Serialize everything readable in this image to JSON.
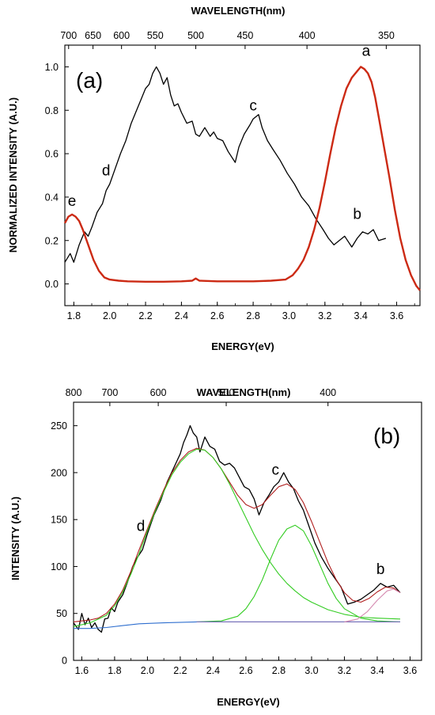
{
  "chart_data": [
    {
      "panel": "(a)",
      "type": "line",
      "xlabel": "ENERGY(eV)",
      "ylabel": "NORMALIZED INTENSITY (A.U.)",
      "top_axis_label": "WAVELENGTH(nm)",
      "xlim": [
        1.75,
        3.73
      ],
      "ylim": [
        -0.1,
        1.1
      ],
      "x_ticks": [
        "1.8",
        "2.0",
        "2.2",
        "2.4",
        "2.6",
        "2.8",
        "3.0",
        "3.2",
        "3.4",
        "3.6"
      ],
      "y_ticks": [
        "0.0",
        "0.2",
        "0.4",
        "0.6",
        "0.8",
        "1.0"
      ],
      "top_ticks": [
        "700",
        "650",
        "600",
        "550",
        "500",
        "450",
        "400",
        "350"
      ],
      "top_tick_energies": [
        1.771,
        1.907,
        2.066,
        2.254,
        2.48,
        2.755,
        3.1,
        3.542
      ],
      "grid": false,
      "series": [
        {
          "label": "black spectrum",
          "color": "#000000",
          "x": [
            1.75,
            1.78,
            1.8,
            1.83,
            1.86,
            1.88,
            1.9,
            1.93,
            1.96,
            1.98,
            2.0,
            2.03,
            2.06,
            2.09,
            2.12,
            2.15,
            2.18,
            2.2,
            2.22,
            2.24,
            2.26,
            2.28,
            2.3,
            2.32,
            2.34,
            2.36,
            2.38,
            2.4,
            2.43,
            2.46,
            2.48,
            2.5,
            2.53,
            2.56,
            2.58,
            2.6,
            2.63,
            2.66,
            2.7,
            2.72,
            2.75,
            2.78,
            2.8,
            2.83,
            2.85,
            2.88,
            2.91,
            2.95,
            2.99,
            3.03,
            3.07,
            3.11,
            3.15,
            3.19,
            3.22,
            3.25,
            3.28,
            3.31,
            3.35,
            3.38,
            3.41,
            3.44,
            3.47,
            3.5,
            3.54
          ],
          "y": [
            0.1,
            0.14,
            0.1,
            0.18,
            0.24,
            0.22,
            0.26,
            0.33,
            0.37,
            0.43,
            0.46,
            0.53,
            0.6,
            0.66,
            0.74,
            0.8,
            0.86,
            0.9,
            0.92,
            0.97,
            1.0,
            0.97,
            0.92,
            0.95,
            0.87,
            0.82,
            0.83,
            0.79,
            0.74,
            0.75,
            0.69,
            0.68,
            0.72,
            0.68,
            0.7,
            0.67,
            0.66,
            0.61,
            0.56,
            0.63,
            0.69,
            0.73,
            0.76,
            0.78,
            0.72,
            0.66,
            0.62,
            0.57,
            0.51,
            0.46,
            0.4,
            0.36,
            0.3,
            0.25,
            0.21,
            0.18,
            0.2,
            0.22,
            0.17,
            0.21,
            0.24,
            0.23,
            0.25,
            0.2,
            0.21
          ]
        },
        {
          "label": "red spectrum",
          "color": "#cc2a14",
          "x": [
            1.75,
            1.77,
            1.79,
            1.81,
            1.83,
            1.85,
            1.88,
            1.91,
            1.94,
            1.97,
            2.0,
            2.05,
            2.1,
            2.2,
            2.3,
            2.4,
            2.46,
            2.48,
            2.5,
            2.6,
            2.7,
            2.8,
            2.9,
            2.98,
            3.02,
            3.05,
            3.08,
            3.11,
            3.14,
            3.17,
            3.2,
            3.23,
            3.26,
            3.29,
            3.32,
            3.35,
            3.38,
            3.4,
            3.42,
            3.44,
            3.46,
            3.48,
            3.5,
            3.53,
            3.56,
            3.59,
            3.62,
            3.65,
            3.68,
            3.71,
            3.73
          ],
          "y": [
            0.28,
            0.31,
            0.32,
            0.31,
            0.29,
            0.25,
            0.18,
            0.11,
            0.06,
            0.03,
            0.02,
            0.015,
            0.012,
            0.01,
            0.01,
            0.012,
            0.015,
            0.025,
            0.015,
            0.012,
            0.012,
            0.012,
            0.015,
            0.02,
            0.04,
            0.07,
            0.11,
            0.17,
            0.25,
            0.35,
            0.47,
            0.6,
            0.72,
            0.82,
            0.9,
            0.95,
            0.98,
            1.0,
            0.99,
            0.97,
            0.93,
            0.86,
            0.77,
            0.63,
            0.49,
            0.34,
            0.21,
            0.11,
            0.04,
            -0.01,
            -0.03
          ]
        }
      ],
      "annotations": [
        {
          "text": "a",
          "x": 3.43,
          "y": 1.05
        },
        {
          "text": "b",
          "x": 3.38,
          "y": 0.3
        },
        {
          "text": "c",
          "x": 2.8,
          "y": 0.8
        },
        {
          "text": "d",
          "x": 1.98,
          "y": 0.5
        },
        {
          "text": "e",
          "x": 1.79,
          "y": 0.36
        }
      ]
    },
    {
      "panel": "(b)",
      "type": "line",
      "xlabel": "ENERGY(eV)",
      "ylabel": "INTENSITY (A.U.)",
      "top_axis_label": "WAVELENGTH(nm)",
      "xlim": [
        1.55,
        3.67
      ],
      "ylim": [
        0,
        275
      ],
      "x_ticks": [
        "1.6",
        "1.8",
        "2.0",
        "2.2",
        "2.4",
        "2.6",
        "2.8",
        "3.0",
        "3.2",
        "3.4",
        "3.6"
      ],
      "y_ticks": [
        "0",
        "50",
        "100",
        "150",
        "200",
        "250"
      ],
      "top_ticks": [
        "800",
        "700",
        "600",
        "500",
        "400"
      ],
      "top_tick_energies": [
        1.55,
        1.771,
        2.066,
        2.48,
        3.1
      ],
      "grid": false,
      "series": [
        {
          "label": "black data",
          "color": "#000000",
          "x": [
            1.55,
            1.58,
            1.6,
            1.62,
            1.64,
            1.66,
            1.68,
            1.7,
            1.72,
            1.74,
            1.76,
            1.78,
            1.8,
            1.82,
            1.85,
            1.88,
            1.91,
            1.94,
            1.97,
            2.0,
            2.04,
            2.08,
            2.12,
            2.16,
            2.2,
            2.22,
            2.24,
            2.26,
            2.28,
            2.3,
            2.32,
            2.35,
            2.38,
            2.41,
            2.44,
            2.47,
            2.5,
            2.53,
            2.56,
            2.59,
            2.62,
            2.65,
            2.68,
            2.71,
            2.74,
            2.77,
            2.8,
            2.83,
            2.86,
            2.89,
            2.92,
            2.95,
            2.98,
            3.02,
            3.06,
            3.1,
            3.14,
            3.18,
            3.22,
            3.26,
            3.3,
            3.34,
            3.38,
            3.42,
            3.46,
            3.5,
            3.54
          ],
          "y": [
            40,
            33,
            50,
            38,
            45,
            35,
            40,
            33,
            30,
            44,
            45,
            56,
            52,
            62,
            70,
            84,
            100,
            110,
            118,
            135,
            155,
            170,
            190,
            205,
            220,
            232,
            240,
            250,
            242,
            238,
            222,
            238,
            228,
            225,
            212,
            208,
            210,
            205,
            195,
            185,
            182,
            172,
            155,
            168,
            176,
            185,
            190,
            200,
            190,
            183,
            170,
            160,
            145,
            125,
            110,
            98,
            88,
            78,
            60,
            62,
            65,
            70,
            75,
            82,
            78,
            80,
            72
          ]
        },
        {
          "label": "red fit",
          "color": "#b01e1e",
          "x": [
            1.55,
            1.6,
            1.65,
            1.7,
            1.75,
            1.8,
            1.85,
            1.9,
            1.95,
            2.0,
            2.05,
            2.1,
            2.15,
            2.2,
            2.25,
            2.3,
            2.35,
            2.4,
            2.45,
            2.5,
            2.55,
            2.6,
            2.65,
            2.7,
            2.75,
            2.8,
            2.85,
            2.9,
            2.95,
            3.0,
            3.05,
            3.1,
            3.15,
            3.2,
            3.25,
            3.3,
            3.35,
            3.4,
            3.45,
            3.5,
            3.54
          ],
          "y": [
            41,
            42,
            43,
            45,
            50,
            60,
            75,
            95,
            118,
            140,
            162,
            182,
            200,
            213,
            222,
            226,
            224,
            216,
            204,
            190,
            176,
            166,
            162,
            166,
            176,
            185,
            188,
            182,
            168,
            148,
            126,
            104,
            86,
            72,
            64,
            62,
            66,
            73,
            78,
            77,
            72
          ]
        },
        {
          "label": "green component 1",
          "color": "#33cc22",
          "x": [
            1.55,
            1.65,
            1.75,
            1.8,
            1.85,
            1.9,
            1.95,
            2.0,
            2.05,
            2.1,
            2.15,
            2.2,
            2.25,
            2.3,
            2.35,
            2.4,
            2.45,
            2.5,
            2.55,
            2.6,
            2.65,
            2.7,
            2.75,
            2.8,
            2.85,
            2.9,
            2.95,
            3.0,
            3.1,
            3.2,
            3.3,
            3.4,
            3.54
          ],
          "y": [
            36,
            40,
            48,
            58,
            73,
            92,
            114,
            138,
            160,
            180,
            198,
            211,
            220,
            225,
            224,
            216,
            204,
            188,
            170,
            152,
            134,
            118,
            104,
            92,
            82,
            74,
            67,
            62,
            54,
            49,
            46,
            45,
            44
          ]
        },
        {
          "label": "green component 2",
          "color": "#33cc22",
          "x": [
            2.3,
            2.45,
            2.55,
            2.6,
            2.65,
            2.7,
            2.75,
            2.8,
            2.85,
            2.9,
            2.95,
            3.0,
            3.05,
            3.1,
            3.15,
            3.2,
            3.3,
            3.4,
            3.54
          ],
          "y": [
            41,
            42,
            47,
            55,
            68,
            86,
            108,
            128,
            140,
            144,
            138,
            122,
            102,
            82,
            66,
            55,
            45,
            42,
            41
          ]
        },
        {
          "label": "baseline",
          "color": "#2f6fcf",
          "x": [
            1.55,
            1.65,
            1.75,
            1.85,
            1.95,
            2.1,
            2.3,
            2.6,
            3.0,
            3.54
          ],
          "y": [
            34,
            34,
            35,
            37,
            39,
            40,
            41,
            41,
            41,
            41
          ]
        },
        {
          "label": "baseline 2",
          "color": "#7a6fb8",
          "x": [
            2.3,
            3.0,
            3.54
          ],
          "y": [
            41,
            41,
            41
          ]
        },
        {
          "label": "component b",
          "color": "#d58ab0",
          "x": [
            3.2,
            3.28,
            3.34,
            3.4,
            3.46,
            3.5,
            3.54
          ],
          "y": [
            41,
            44,
            52,
            64,
            74,
            76,
            72
          ]
        }
      ],
      "annotations": [
        {
          "text": "b",
          "x": 3.42,
          "y": 92
        },
        {
          "text": "c",
          "x": 2.78,
          "y": 198
        },
        {
          "text": "d",
          "x": 1.96,
          "y": 138
        }
      ]
    }
  ]
}
